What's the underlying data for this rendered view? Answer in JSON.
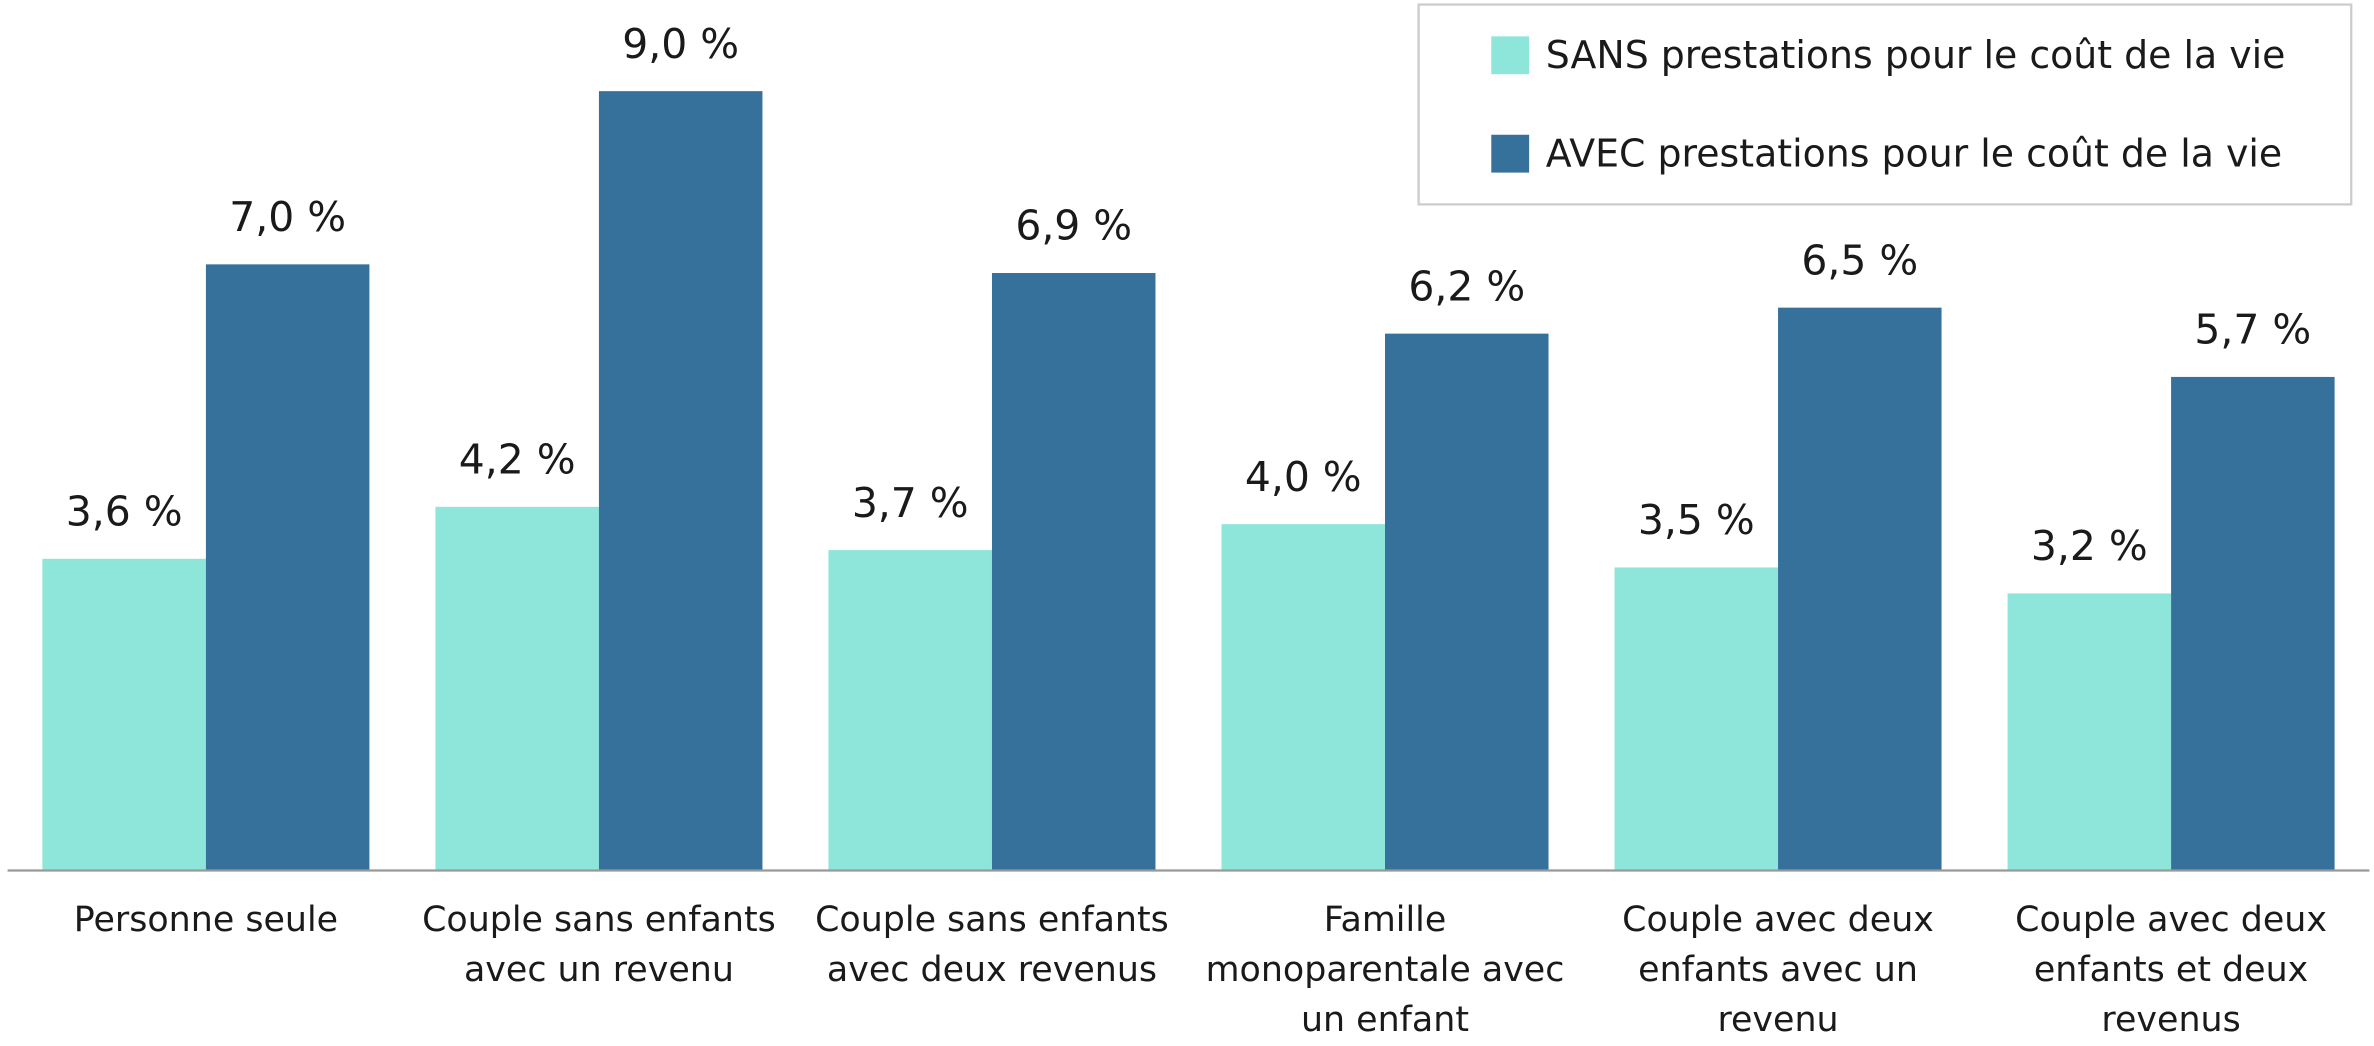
{
  "chart_data": {
    "type": "bar",
    "categories": [
      "Personne seule",
      "Couple sans enfants avec un revenu",
      "Couple sans enfants avec deux revenus",
      "Famille monoparentale avec un enfant",
      "Couple avec deux enfants avec un revenu",
      "Couple avec deux enfants et deux revenus"
    ],
    "series": [
      {
        "name": "SANS prestations pour le coût de la vie",
        "color": "#8ee5da",
        "values": [
          3.6,
          4.2,
          3.7,
          4.0,
          3.5,
          3.2
        ],
        "value_labels": [
          "3,6 %",
          "4,2 %",
          "3,7 %",
          "4,0 %",
          "3,5 %",
          "3,2 %"
        ]
      },
      {
        "name": "AVEC prestations pour le coût de la vie",
        "color": "#36719b",
        "values": [
          7.0,
          9.0,
          6.9,
          6.2,
          6.5,
          5.7
        ],
        "value_labels": [
          "7,0 %",
          "9,0 %",
          "6,9 %",
          "6,2 %",
          "6,5 %",
          "5,7 %"
        ]
      }
    ],
    "legend": "top-right"
  }
}
